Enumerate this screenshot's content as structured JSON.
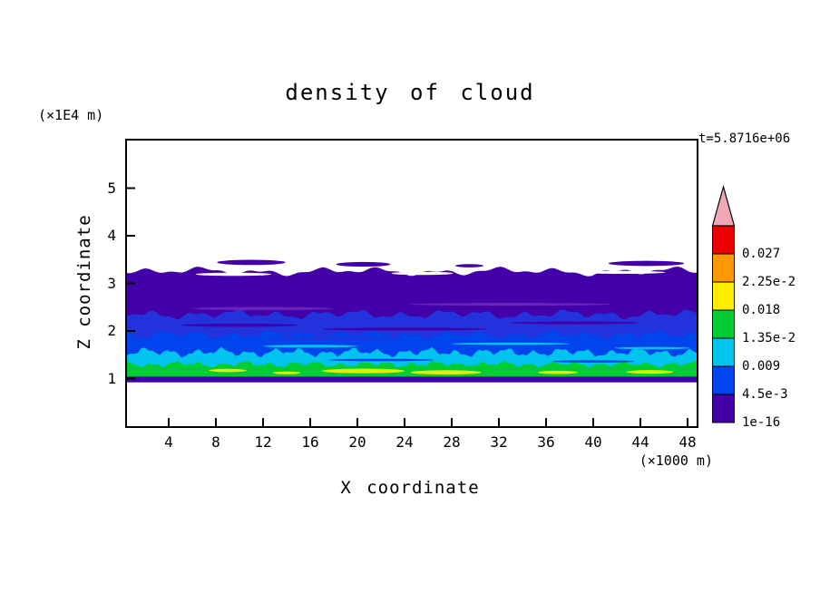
{
  "title": "density of cloud",
  "time_label": "t=5.8716e+06",
  "axis": {
    "x_label": "X coordinate",
    "x_units": "(×1000 m)",
    "y_label": "Z coordinate",
    "y_units": "(×1E4 m)",
    "x_ticks": [
      "4",
      "8",
      "12",
      "16",
      "20",
      "24",
      "28",
      "32",
      "36",
      "40",
      "44",
      "48"
    ],
    "y_ticks": [
      "1",
      "2",
      "3",
      "4",
      "5"
    ]
  },
  "colorbar": {
    "labels_top_to_bottom": [
      "0.027",
      "2.25e-2",
      "0.018",
      "1.35e-2",
      "0.009",
      "4.5e-3",
      "1e-16"
    ],
    "segment_colors_top_to_bottom": [
      "#ee0000",
      "#ff9900",
      "#ffee00",
      "#00cc33",
      "#00c4ee",
      "#0044ee",
      "#4400a8"
    ],
    "overflow_arrow_color": "#f0a8b8"
  },
  "chart_data": {
    "type": "heatmap",
    "title": "density of cloud",
    "xlabel": "X coordinate (×1000 m)",
    "ylabel": "Z coordinate (×1E4 m)",
    "x_range": [
      0.5,
      48.8
    ],
    "y_range": [
      0,
      6
    ],
    "time_annotation": "t=5.8716e+06",
    "levels": [
      "1e-16",
      "4.5e-3",
      "0.009",
      "1.35e-2",
      "0.018",
      "2.25e-2",
      "0.027"
    ],
    "level_colors": [
      "#4400a8",
      "#0044ee",
      "#00c4ee",
      "#00cc33",
      "#ffee00",
      "#ff9900",
      "#ee0000"
    ],
    "description": "Horizontally layered cloud density field: zero above z≈3.3e4 m, very low density (1e-16 band) from z≈2.35 to 3.25, increasing density toward z≈1.0e4 m with cyan/green/yellow maxima near z≈1.1-1.2, and a thin low-density strip at z≈1.0; white (zero) below z≈0.9.",
    "bands": [
      {
        "name": "indigo-main",
        "color": "#4400a8",
        "z_base": 1.02,
        "z_top": 3.25,
        "amplitude": 0.09,
        "wavelength": 5.0,
        "seed": 3
      },
      {
        "name": "blue-dark",
        "color": "#2233dd",
        "z_base": 1.02,
        "z_top": 2.35,
        "amplitude": 0.1,
        "wavelength": 3.5,
        "seed": 7
      },
      {
        "name": "blue",
        "color": "#0044ee",
        "z_base": 1.02,
        "z_top": 1.92,
        "amplitude": 0.09,
        "wavelength": 3.0,
        "seed": 11
      },
      {
        "name": "cyan",
        "color": "#00c4ee",
        "z_base": 1.02,
        "z_top": 1.55,
        "amplitude": 0.1,
        "wavelength": 2.2,
        "seed": 13
      },
      {
        "name": "green",
        "color": "#00cc33",
        "z_base": 1.02,
        "z_top": 1.3,
        "amplitude": 0.07,
        "wavelength": 2.0,
        "seed": 17
      }
    ],
    "overlays": [
      {
        "kind": "e",
        "color": "#6a22bb",
        "x": 12.0,
        "hw": 6.0,
        "z": 2.47,
        "h": 0.07
      },
      {
        "kind": "e",
        "color": "#6a22bb",
        "x": 33.0,
        "hw": 8.5,
        "z": 2.56,
        "h": 0.06
      },
      {
        "kind": "e",
        "color": "#4400a8",
        "x": 10.0,
        "hw": 5.0,
        "z": 2.12,
        "h": 0.07
      },
      {
        "kind": "e",
        "color": "#4400a8",
        "x": 24.0,
        "hw": 7.0,
        "z": 2.04,
        "h": 0.06
      },
      {
        "kind": "e",
        "color": "#4400a8",
        "x": 38.5,
        "hw": 5.5,
        "z": 2.17,
        "h": 0.06
      },
      {
        "kind": "e",
        "color": "#2233dd",
        "x": 18.0,
        "hw": 6.0,
        "z": 1.82,
        "h": 0.06
      },
      {
        "kind": "e",
        "color": "#00c4ee",
        "x": 16.0,
        "hw": 4.0,
        "z": 1.68,
        "h": 0.06
      },
      {
        "kind": "e",
        "color": "#00c4ee",
        "x": 33.0,
        "hw": 5.0,
        "z": 1.73,
        "h": 0.05
      },
      {
        "kind": "e",
        "color": "#00c4ee",
        "x": 45.0,
        "hw": 3.2,
        "z": 1.64,
        "h": 0.05
      },
      {
        "kind": "e",
        "color": "#0044ee",
        "x": 22.0,
        "hw": 4.5,
        "z": 1.39,
        "h": 0.05
      },
      {
        "kind": "e",
        "color": "#0044ee",
        "x": 40.0,
        "hw": 3.5,
        "z": 1.36,
        "h": 0.05
      },
      {
        "kind": "e",
        "color": "#00cc33",
        "x": 30.0,
        "hw": 4.0,
        "z": 1.24,
        "h": 0.06
      },
      {
        "kind": "e",
        "color": "#ddee00",
        "x": 20.5,
        "hw": 3.5,
        "z": 1.16,
        "h": 0.1
      },
      {
        "kind": "e",
        "color": "#ddee00",
        "x": 27.5,
        "hw": 3.0,
        "z": 1.13,
        "h": 0.09
      },
      {
        "kind": "e",
        "color": "#ddee00",
        "x": 9.0,
        "hw": 1.6,
        "z": 1.17,
        "h": 0.07
      },
      {
        "kind": "e",
        "color": "#ddee00",
        "x": 14.0,
        "hw": 1.2,
        "z": 1.12,
        "h": 0.06
      },
      {
        "kind": "e",
        "color": "#ddee00",
        "x": 37.0,
        "hw": 1.7,
        "z": 1.13,
        "h": 0.07
      },
      {
        "kind": "e",
        "color": "#ddee00",
        "x": 44.8,
        "hw": 2.0,
        "z": 1.14,
        "h": 0.08
      },
      {
        "kind": "strip",
        "color": "#4400a8",
        "z_low": 0.92,
        "z_high": 1.04
      },
      {
        "kind": "e",
        "color": "#ffffff",
        "x": 9.5,
        "hw": 3.2,
        "z": 3.19,
        "h": 0.07
      },
      {
        "kind": "e",
        "color": "#ffffff",
        "x": 25.5,
        "hw": 2.6,
        "z": 3.21,
        "h": 0.07
      },
      {
        "kind": "e",
        "color": "#ffffff",
        "x": 42.5,
        "hw": 3.6,
        "z": 3.23,
        "h": 0.06
      },
      {
        "kind": "e",
        "color": "#4400a8",
        "x": 11.0,
        "hw": 2.9,
        "z": 3.44,
        "h": 0.11
      },
      {
        "kind": "e",
        "color": "#4400a8",
        "x": 20.5,
        "hw": 2.3,
        "z": 3.4,
        "h": 0.1
      },
      {
        "kind": "e",
        "color": "#4400a8",
        "x": 29.5,
        "hw": 1.2,
        "z": 3.37,
        "h": 0.07
      },
      {
        "kind": "e",
        "color": "#4400a8",
        "x": 44.5,
        "hw": 3.2,
        "z": 3.42,
        "h": 0.11
      }
    ]
  }
}
